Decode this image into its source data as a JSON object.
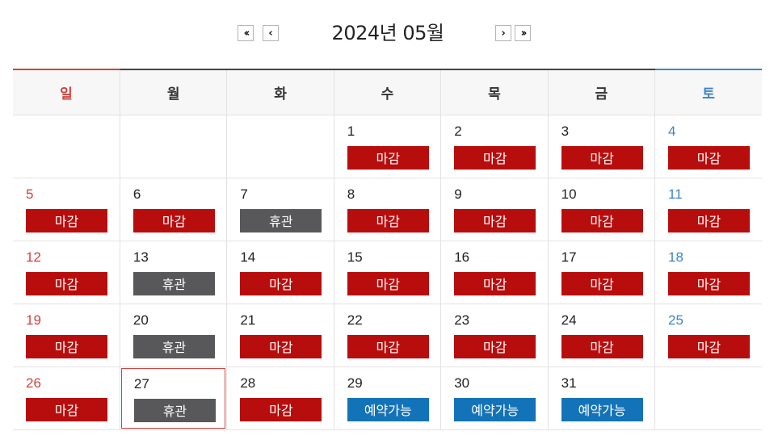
{
  "header": {
    "title": "2024년 05월",
    "prev_year_icon": "double-chevron-left",
    "prev_month_icon": "chevron-left",
    "next_month_icon": "chevron-right",
    "next_year_icon": "double-chevron-right"
  },
  "weekdays": [
    "일",
    "월",
    "화",
    "수",
    "목",
    "금",
    "토"
  ],
  "colors": {
    "sunday": "#d0433f",
    "saturday": "#3d85c6",
    "closed": "#b80d0d",
    "holiday": "#58585a",
    "available": "#1373b8"
  },
  "weeks": [
    [
      null,
      null,
      null,
      {
        "day": "1",
        "status": "마감",
        "type": "closed"
      },
      {
        "day": "2",
        "status": "마감",
        "type": "closed"
      },
      {
        "day": "3",
        "status": "마감",
        "type": "closed"
      },
      {
        "day": "4",
        "status": "마감",
        "type": "closed"
      }
    ],
    [
      {
        "day": "5",
        "status": "마감",
        "type": "closed"
      },
      {
        "day": "6",
        "status": "마감",
        "type": "closed"
      },
      {
        "day": "7",
        "status": "휴관",
        "type": "holiday"
      },
      {
        "day": "8",
        "status": "마감",
        "type": "closed"
      },
      {
        "day": "9",
        "status": "마감",
        "type": "closed"
      },
      {
        "day": "10",
        "status": "마감",
        "type": "closed"
      },
      {
        "day": "11",
        "status": "마감",
        "type": "closed"
      }
    ],
    [
      {
        "day": "12",
        "status": "마감",
        "type": "closed"
      },
      {
        "day": "13",
        "status": "휴관",
        "type": "holiday"
      },
      {
        "day": "14",
        "status": "마감",
        "type": "closed"
      },
      {
        "day": "15",
        "status": "마감",
        "type": "closed"
      },
      {
        "day": "16",
        "status": "마감",
        "type": "closed"
      },
      {
        "day": "17",
        "status": "마감",
        "type": "closed"
      },
      {
        "day": "18",
        "status": "마감",
        "type": "closed"
      }
    ],
    [
      {
        "day": "19",
        "status": "마감",
        "type": "closed"
      },
      {
        "day": "20",
        "status": "휴관",
        "type": "holiday"
      },
      {
        "day": "21",
        "status": "마감",
        "type": "closed"
      },
      {
        "day": "22",
        "status": "마감",
        "type": "closed"
      },
      {
        "day": "23",
        "status": "마감",
        "type": "closed"
      },
      {
        "day": "24",
        "status": "마감",
        "type": "closed"
      },
      {
        "day": "25",
        "status": "마감",
        "type": "closed"
      }
    ],
    [
      {
        "day": "26",
        "status": "마감",
        "type": "closed"
      },
      {
        "day": "27",
        "status": "휴관",
        "type": "holiday",
        "today": true
      },
      {
        "day": "28",
        "status": "마감",
        "type": "closed"
      },
      {
        "day": "29",
        "status": "예약가능",
        "type": "available"
      },
      {
        "day": "30",
        "status": "예약가능",
        "type": "available"
      },
      {
        "day": "31",
        "status": "예약가능",
        "type": "available"
      },
      null
    ]
  ]
}
